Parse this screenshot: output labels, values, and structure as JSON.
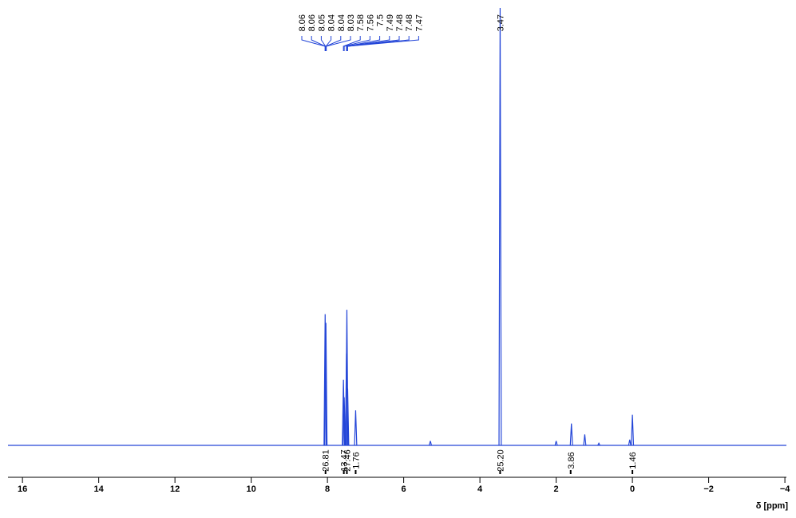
{
  "chart_data": {
    "type": "nmr",
    "xlabel": "δ [ppm]",
    "xlim": [
      16.38,
      -4.04
    ],
    "ylim": [
      0,
      100
    ],
    "xticks": [
      16,
      14,
      12,
      10,
      8,
      6,
      4,
      2,
      0,
      {
        "value": -2,
        "label": "−2"
      },
      {
        "value": -4,
        "label": "−4"
      }
    ],
    "color": "#2446d8",
    "peaks": {
      "x": [
        8.06,
        8.04,
        7.58,
        7.56,
        7.5,
        7.49,
        7.47,
        7.26,
        5.3,
        3.47,
        2.0,
        1.6,
        1.25,
        0.88,
        0.07,
        0.0
      ],
      "values": [
        30,
        28,
        15,
        11,
        21,
        31,
        13,
        8,
        1,
        100,
        1,
        5,
        2.5,
        0.5,
        1.3,
        7
      ]
    },
    "peak_labels": [
      8.06,
      8.06,
      8.05,
      8.04,
      8.04,
      8.03,
      7.58,
      7.56,
      7.5,
      7.49,
      7.48,
      7.48,
      7.47,
      3.47
    ],
    "integrals": {
      "x": [
        8.05,
        7.57,
        7.49,
        7.26,
        3.47,
        1.62,
        0.0
      ],
      "values": [
        26.81,
        13.47,
        27.46,
        1.76,
        25.2,
        3.86,
        1.46
      ],
      "value_labels": [
        "26.81",
        "13.47",
        "27.46",
        "1.76",
        "25.20",
        "3.86",
        "1.46"
      ]
    }
  }
}
